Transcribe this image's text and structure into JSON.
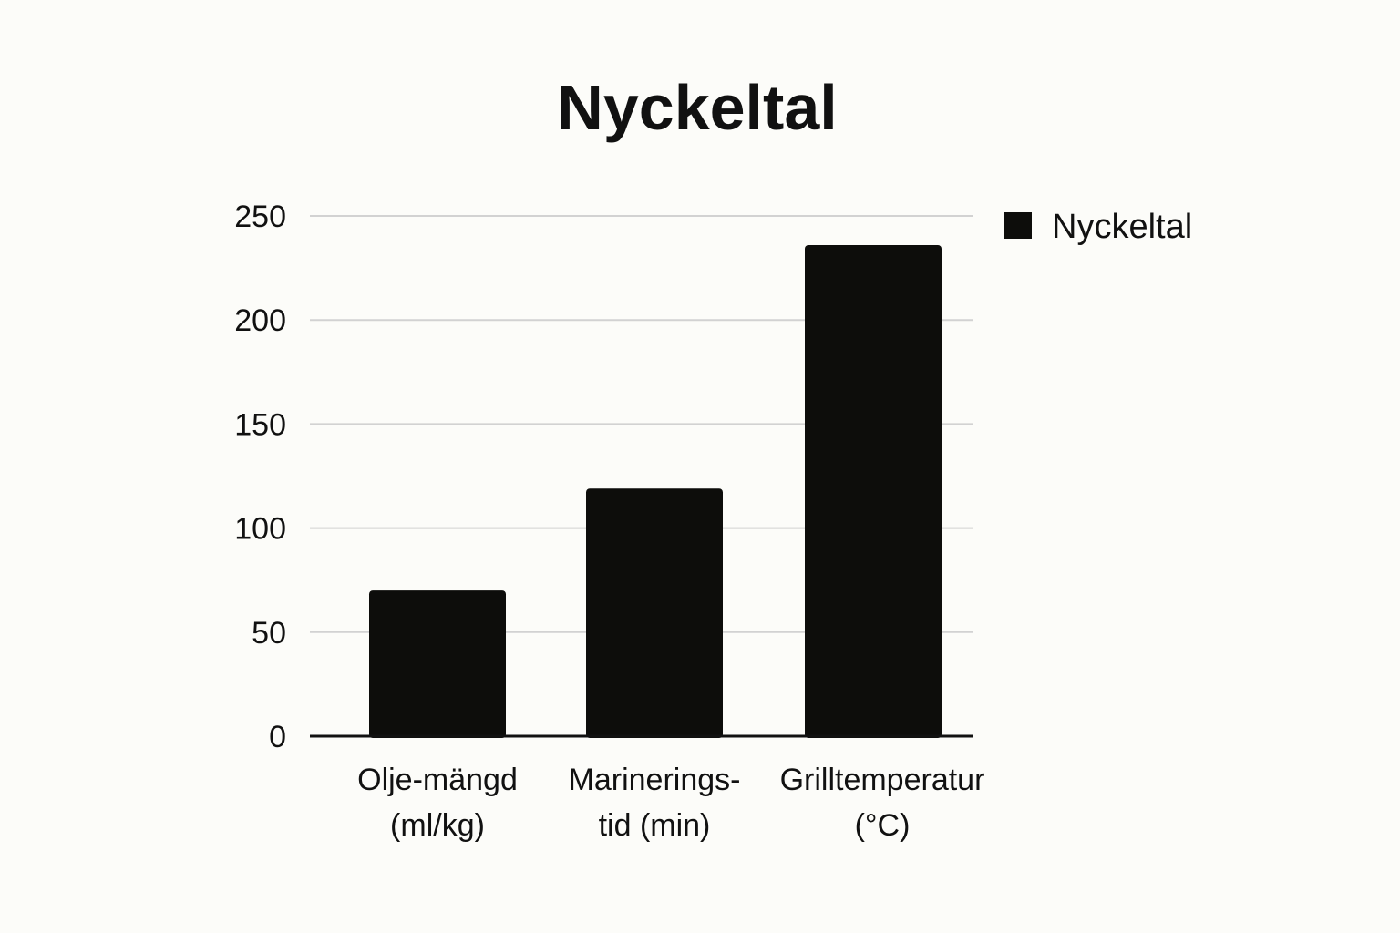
{
  "chart_data": {
    "type": "bar",
    "title": "Nyckeltal",
    "categories": [
      [
        "Olje-mängd",
        "(ml/kg)"
      ],
      [
        "Marinerings-",
        "tid (min)"
      ],
      [
        "Grilltemperatur",
        "(°C)"
      ]
    ],
    "series": [
      {
        "name": "Nyckeltal",
        "values": [
          70,
          119,
          236
        ],
        "color": "#0d0d0b"
      }
    ],
    "xlabel": "",
    "ylabel": "",
    "ylim": [
      0,
      250
    ],
    "yticks": [
      0,
      50,
      100,
      150,
      200,
      250
    ],
    "grid": true,
    "legend": "top-right"
  }
}
